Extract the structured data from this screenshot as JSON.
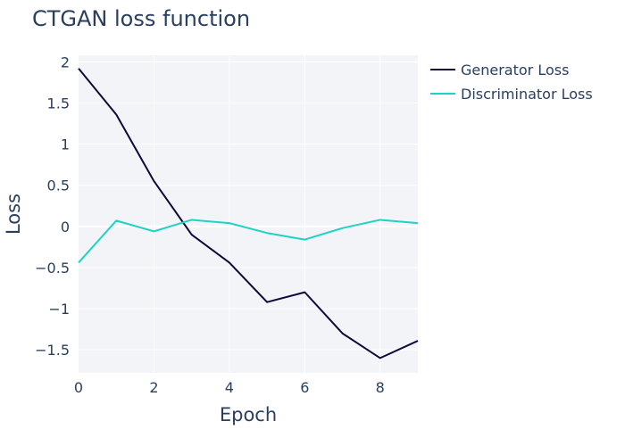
{
  "chart_data": {
    "type": "line",
    "title": "CTGAN loss function",
    "xlabel": "Epoch",
    "ylabel": "Loss",
    "x": [
      0,
      1,
      2,
      3,
      4,
      5,
      6,
      7,
      8,
      9
    ],
    "xlim": [
      0,
      9
    ],
    "ylim": [
      -1.78,
      2.08
    ],
    "xticks": [
      0,
      2,
      4,
      6,
      8
    ],
    "xtick_labels": [
      "0",
      "2",
      "4",
      "6",
      "8"
    ],
    "yticks": [
      2,
      1.5,
      1,
      0.5,
      0,
      -0.5,
      -1,
      -1.5
    ],
    "ytick_labels": [
      "2",
      "1.5",
      "1",
      "0.5",
      "0",
      "−0.5",
      "−1",
      "−1.5"
    ],
    "grid": true,
    "legend_position": "top-right, outside plot",
    "series": [
      {
        "name": "Generator Loss",
        "color": "#0d0a3a",
        "values": [
          1.92,
          1.36,
          0.55,
          -0.1,
          -0.44,
          -0.92,
          -0.8,
          -1.3,
          -1.6,
          -1.39
        ]
      },
      {
        "name": "Discriminator Loss",
        "color": "#1ed3c4",
        "values": [
          -0.44,
          0.07,
          -0.06,
          0.08,
          0.04,
          -0.08,
          -0.16,
          -0.02,
          0.08,
          0.04
        ]
      }
    ]
  }
}
